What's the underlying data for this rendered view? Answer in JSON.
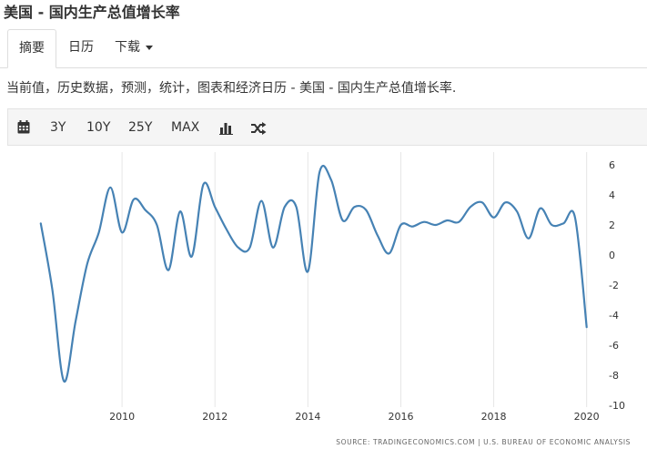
{
  "header": {
    "title": "美国 - 国内生产总值增长率"
  },
  "tabs": [
    {
      "label": "摘要"
    },
    {
      "label": "日历"
    },
    {
      "label": "下载"
    }
  ],
  "description": "当前值，历史数据，预测，统计，图表和经济日历 - 美国 - 国内生产总值增长率.",
  "toolbar": {
    "icons": [
      "calendar-icon",
      "bar-chart-icon",
      "shuffle-icon"
    ],
    "ranges": [
      "3Y",
      "10Y",
      "25Y",
      "MAX"
    ]
  },
  "source_note": "SOURCE: TRADINGECONOMICS.COM | U.S. BUREAU OF ECONOMIC ANALYSIS",
  "chart_data": {
    "type": "line",
    "title": "",
    "xlabel": "",
    "ylabel": "",
    "ylim": [
      -10,
      6
    ],
    "xlim": [
      2008.0,
      2020.3
    ],
    "y_ticks": [
      6,
      4,
      2,
      0,
      -2,
      -4,
      -6,
      -8,
      -10
    ],
    "x_ticks": [
      2010,
      2012,
      2014,
      2016,
      2018,
      2020
    ],
    "y_axis_position": "right",
    "grid": "vertical",
    "line_color": "#4682b4",
    "series": [
      {
        "name": "",
        "points": [
          [
            2008.25,
            2.1
          ],
          [
            2008.5,
            -2.3
          ],
          [
            2008.75,
            -8.4
          ],
          [
            2009.0,
            -4.4
          ],
          [
            2009.25,
            -0.6
          ],
          [
            2009.5,
            1.5
          ],
          [
            2009.75,
            4.5
          ],
          [
            2010.0,
            1.5
          ],
          [
            2010.25,
            3.7
          ],
          [
            2010.5,
            3.0
          ],
          [
            2010.75,
            2.0
          ],
          [
            2011.0,
            -1.0
          ],
          [
            2011.25,
            2.9
          ],
          [
            2011.5,
            -0.1
          ],
          [
            2011.75,
            4.7
          ],
          [
            2012.0,
            3.2
          ],
          [
            2012.25,
            1.7
          ],
          [
            2012.5,
            0.5
          ],
          [
            2012.75,
            0.5
          ],
          [
            2013.0,
            3.6
          ],
          [
            2013.25,
            0.5
          ],
          [
            2013.5,
            3.2
          ],
          [
            2013.75,
            3.2
          ],
          [
            2014.0,
            -1.1
          ],
          [
            2014.25,
            5.5
          ],
          [
            2014.5,
            5.0
          ],
          [
            2014.75,
            2.3
          ],
          [
            2015.0,
            3.2
          ],
          [
            2015.25,
            3.0
          ],
          [
            2015.5,
            1.3
          ],
          [
            2015.75,
            0.1
          ],
          [
            2016.0,
            2.0
          ],
          [
            2016.25,
            1.9
          ],
          [
            2016.5,
            2.2
          ],
          [
            2016.75,
            2.0
          ],
          [
            2017.0,
            2.3
          ],
          [
            2017.25,
            2.2
          ],
          [
            2017.5,
            3.2
          ],
          [
            2017.75,
            3.5
          ],
          [
            2018.0,
            2.5
          ],
          [
            2018.25,
            3.5
          ],
          [
            2018.5,
            2.9
          ],
          [
            2018.75,
            1.1
          ],
          [
            2019.0,
            3.1
          ],
          [
            2019.25,
            2.0
          ],
          [
            2019.5,
            2.1
          ],
          [
            2019.75,
            2.5
          ],
          [
            2020.0,
            -4.8
          ]
        ]
      }
    ]
  }
}
